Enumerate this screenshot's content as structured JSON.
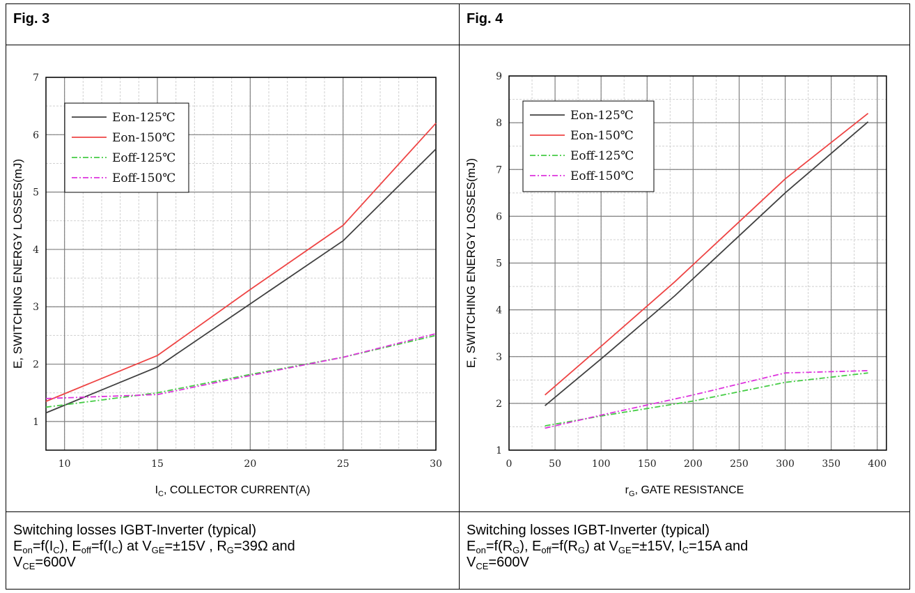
{
  "panels": [
    {
      "fig_label": "Fig. 3",
      "caption": {
        "line1": "Switching losses IGBT-Inverter (typical)",
        "line2": {
          "eon": "E",
          "eon_sub": "on",
          "eon_rest": "=f(I",
          "eon_arg_sub": "C",
          "mid": "), E",
          "eoff_sub": "off",
          "eoff_rest": "=f(I",
          "eoff_arg_sub": "C",
          "at": ") at V",
          "vge_sub": "GE",
          "vge_rest": "=±15V , R",
          "rg_sub": "G",
          "rg_rest": "=39Ω and"
        },
        "line3": {
          "v": "V",
          "vce_sub": "CE",
          "vce_rest": "=600V"
        }
      },
      "xlabel": {
        "main": "I",
        "sub": "C",
        "rest": ", COLLECTOR CURRENT(A)"
      }
    },
    {
      "fig_label": "Fig. 4",
      "caption": {
        "line1": "Switching losses IGBT-Inverter (typical)",
        "line2": {
          "eon": "E",
          "eon_sub": "on",
          "eon_rest": "=f(R",
          "eon_arg_sub": "G",
          "mid": "), E",
          "eoff_sub": "off",
          "eoff_rest": "=f(R",
          "eoff_arg_sub": "G",
          "at": ") at V",
          "vge_sub": "GE",
          "vge_rest": "=±15V, I",
          "rg_sub": "C",
          "rg_rest": "=15A and"
        },
        "line3": {
          "v": "V",
          "vce_sub": "CE",
          "vce_rest": "=600V"
        }
      },
      "xlabel": {
        "main": "r",
        "sub": "G",
        "rest": ", GATE RESISTANCE"
      }
    }
  ],
  "chart_data": [
    {
      "type": "line",
      "title": "",
      "ylabel": "E, SWITCHING ENERGY LOSSES(mJ)",
      "xlabel": "IC, COLLECTOR CURRENT(A)",
      "xlim": [
        9,
        30
      ],
      "ylim": [
        0.5,
        7
      ],
      "xticks": [
        10,
        15,
        20,
        25,
        30
      ],
      "yticks": [
        1,
        2,
        3,
        4,
        5,
        6,
        7
      ],
      "xminor": 1,
      "yminor": 0.5,
      "grid": true,
      "legend_position": "top-left",
      "series": [
        {
          "name": "Eon-125℃",
          "color": "#404040",
          "dash": "",
          "x": [
            9,
            15,
            20,
            25,
            30
          ],
          "y": [
            1.15,
            1.95,
            3.05,
            4.15,
            5.75
          ]
        },
        {
          "name": "Eon-150℃",
          "color": "#ee4444",
          "dash": "",
          "x": [
            9,
            15,
            20,
            25,
            30
          ],
          "y": [
            1.35,
            2.15,
            3.3,
            4.42,
            6.2
          ]
        },
        {
          "name": "Eoff-125℃",
          "color": "#44cc44",
          "dash": "8,3,2,3",
          "x": [
            9,
            15,
            20,
            25,
            30
          ],
          "y": [
            1.25,
            1.5,
            1.82,
            2.12,
            2.5
          ]
        },
        {
          "name": "Eoff-150℃",
          "color": "#dd33dd",
          "dash": "8,3,2,3",
          "x": [
            9,
            15,
            20,
            25,
            30
          ],
          "y": [
            1.4,
            1.47,
            1.8,
            2.12,
            2.53
          ]
        }
      ]
    },
    {
      "type": "line",
      "title": "",
      "ylabel": "E, SWITCHING ENERGY LOSSES(mJ)",
      "xlabel": "rG, GATE RESISTANCE",
      "xlim": [
        0,
        410
      ],
      "ylim": [
        1,
        9
      ],
      "xticks": [
        0,
        50,
        100,
        150,
        200,
        250,
        300,
        350,
        400
      ],
      "yticks": [
        1,
        2,
        3,
        4,
        5,
        6,
        7,
        8,
        9
      ],
      "xminor": 25,
      "yminor": 0.5,
      "grid": true,
      "legend_position": "top-left",
      "series": [
        {
          "name": "Eon-125℃",
          "color": "#404040",
          "dash": "",
          "x": [
            39,
            100,
            180,
            300,
            390
          ],
          "y": [
            1.95,
            2.95,
            4.3,
            6.5,
            8.02
          ]
        },
        {
          "name": "Eon-150℃",
          "color": "#ee4444",
          "dash": "",
          "x": [
            39,
            100,
            180,
            300,
            390
          ],
          "y": [
            2.18,
            3.22,
            4.6,
            6.8,
            8.2
          ]
        },
        {
          "name": "Eoff-125℃",
          "color": "#44cc44",
          "dash": "8,3,2,3",
          "x": [
            39,
            100,
            200,
            300,
            390
          ],
          "y": [
            1.52,
            1.73,
            2.05,
            2.45,
            2.65
          ]
        },
        {
          "name": "Eoff-150℃",
          "color": "#dd33dd",
          "dash": "8,3,2,3",
          "x": [
            39,
            100,
            200,
            300,
            390
          ],
          "y": [
            1.47,
            1.75,
            2.18,
            2.65,
            2.7
          ]
        }
      ]
    }
  ]
}
